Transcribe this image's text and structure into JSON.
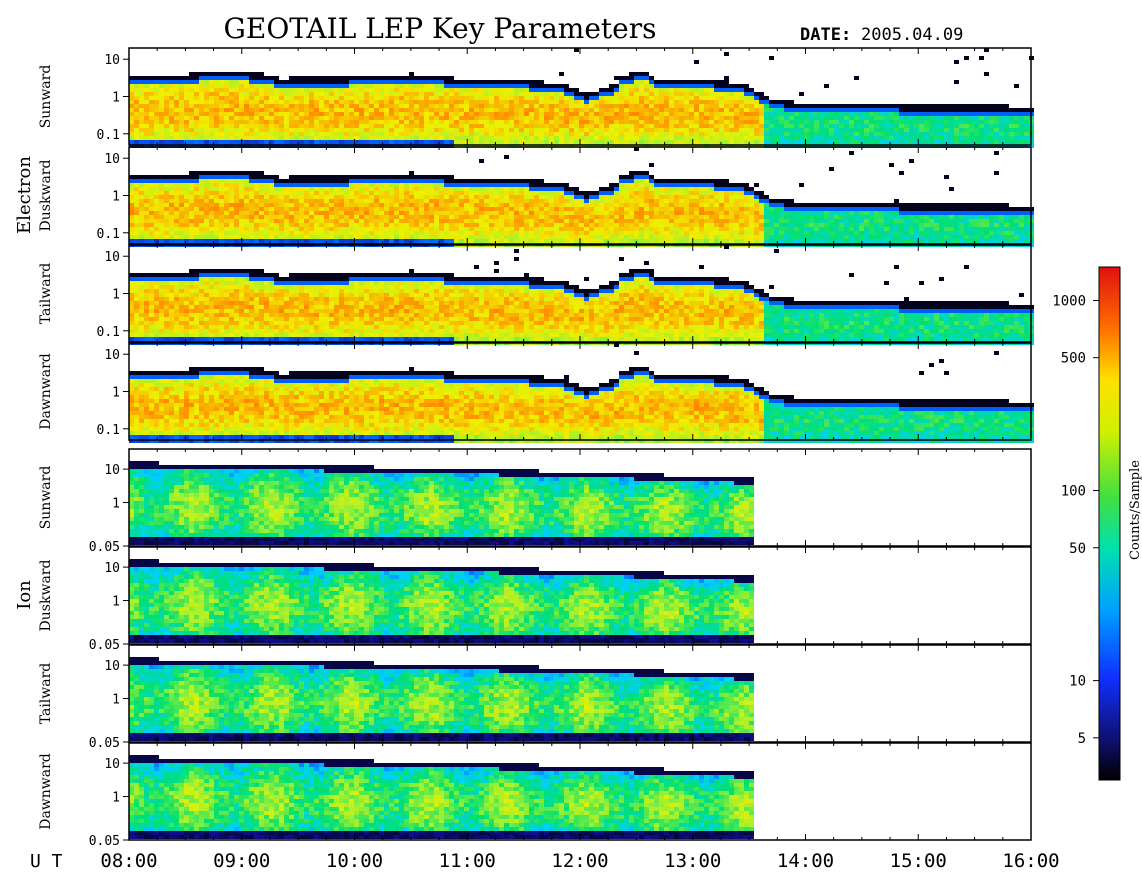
{
  "title": "GEOTAIL LEP Key Parameters",
  "date_label": "DATE:",
  "date_value": "2005.04.09",
  "colorbar": {
    "label": "Counts/Sample",
    "ticks": [
      "5",
      "10",
      "50",
      "100",
      "500",
      "1000"
    ],
    "tick_values": [
      5,
      10,
      50,
      100,
      500,
      1000
    ],
    "range": [
      3,
      1500
    ],
    "scale": "log",
    "colors": [
      "#000000",
      "#1010a0",
      "#0060ff",
      "#00d0ff",
      "#00e070",
      "#a0f030",
      "#f0f000",
      "#ff9000",
      "#ff2000",
      "#c00000"
    ]
  },
  "time_axis": {
    "ut_label": "U T",
    "ticks": [
      "08:00",
      "09:00",
      "10:00",
      "11:00",
      "12:00",
      "13:00",
      "14:00",
      "15:00",
      "16:00"
    ],
    "range_hours": [
      8,
      16
    ]
  },
  "groups": [
    {
      "name": "Electron"
    },
    {
      "name": "Ion"
    }
  ],
  "chart_data": {
    "type": "heatmap",
    "title": "GEOTAIL LEP Key Parameters",
    "xlabel": "U T",
    "xlim": [
      "08:00",
      "16:00"
    ],
    "panels": [
      {
        "group": "Electron",
        "label": "Sunward",
        "yticks": [
          "10",
          "1",
          "0.1"
        ],
        "ytick_values": [
          10,
          1,
          0.1
        ],
        "ylim": [
          0.05,
          20
        ],
        "yscale": "log"
      },
      {
        "group": "Electron",
        "label": "Duskward",
        "yticks": [
          "10",
          "1",
          "0.1"
        ],
        "ytick_values": [
          10,
          1,
          0.1
        ],
        "ylim": [
          0.05,
          20
        ],
        "yscale": "log"
      },
      {
        "group": "Electron",
        "label": "Tailward",
        "yticks": [
          "10",
          "1",
          "0.1"
        ],
        "ytick_values": [
          10,
          1,
          0.1
        ],
        "ylim": [
          0.05,
          20
        ],
        "yscale": "log"
      },
      {
        "group": "Electron",
        "label": "Dawnward",
        "yticks": [
          "10",
          "1",
          "0.1"
        ],
        "ytick_values": [
          10,
          1,
          0.1
        ],
        "ylim": [
          0.05,
          20
        ],
        "yscale": "log"
      },
      {
        "group": "Ion",
        "label": "Sunward",
        "yticks": [
          "10",
          "1",
          "0.05"
        ],
        "ytick_values": [
          10,
          1,
          0.05
        ],
        "ylim": [
          0.05,
          40
        ],
        "yscale": "log"
      },
      {
        "group": "Ion",
        "label": "Duskward",
        "yticks": [
          "10",
          "1",
          "0.05"
        ],
        "ytick_values": [
          10,
          1,
          0.05
        ],
        "ylim": [
          0.05,
          40
        ],
        "yscale": "log"
      },
      {
        "group": "Ion",
        "label": "Tailward",
        "yticks": [
          "10",
          "1",
          "0.05"
        ],
        "ytick_values": [
          10,
          1,
          0.05
        ],
        "ylim": [
          0.05,
          40
        ],
        "yscale": "log"
      },
      {
        "group": "Ion",
        "label": "Dawnward",
        "yticks": [
          "10",
          "1",
          "0.05"
        ],
        "ytick_values": [
          10,
          1,
          0.05
        ],
        "ylim": [
          0.05,
          40
        ],
        "yscale": "log"
      }
    ]
  }
}
